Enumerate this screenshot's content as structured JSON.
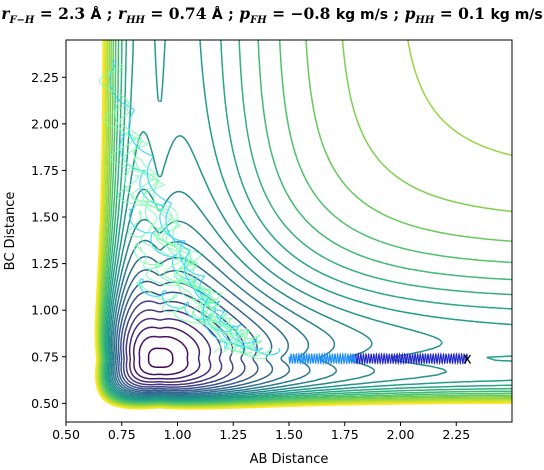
{
  "title": {
    "r_fh_sym": "r",
    "r_fh_sub": "F−H",
    "r_fh_eq": " = 2.3 ",
    "r_fh_unit": "Å",
    "sep1": " ; ",
    "r_hh_sym": "r",
    "r_hh_sub": "HH",
    "r_hh_eq": " = 0.74 ",
    "r_hh_unit": "Å",
    "sep2": " ; ",
    "p_fh_sym": "p",
    "p_fh_sub": "FH",
    "p_fh_eq": " = −0.8 ",
    "p_fh_unit": "kg m/s",
    "sep3": " ; ",
    "p_hh_sym": "p",
    "p_hh_sub": "HH",
    "p_hh_eq": " = 0.1 ",
    "p_hh_unit": "kg m/s"
  },
  "chart_data": {
    "type": "contour",
    "xlabel": "AB Distance",
    "ylabel": "BC Distance",
    "xlim": [
      0.5,
      2.5
    ],
    "ylim": [
      0.4,
      2.45
    ],
    "xticks": [
      "0.50",
      "0.75",
      "1.00",
      "1.25",
      "1.50",
      "1.75",
      "2.00",
      "2.25"
    ],
    "yticks": [
      "0.50",
      "0.75",
      "1.00",
      "1.25",
      "1.50",
      "1.75",
      "2.00",
      "2.25"
    ],
    "colormap": [
      "#440154",
      "#46327e",
      "#365c8d",
      "#277f8e",
      "#1fa187",
      "#4ac16d",
      "#a0da39",
      "#fde725"
    ],
    "trajectory_colors": [
      "#2226c8",
      "#1a8cff",
      "#2ad4ff",
      "#7dffb0"
    ],
    "start_marker": {
      "symbol": "x",
      "x": 2.3,
      "y": 0.74,
      "color": "#ff0000"
    }
  }
}
